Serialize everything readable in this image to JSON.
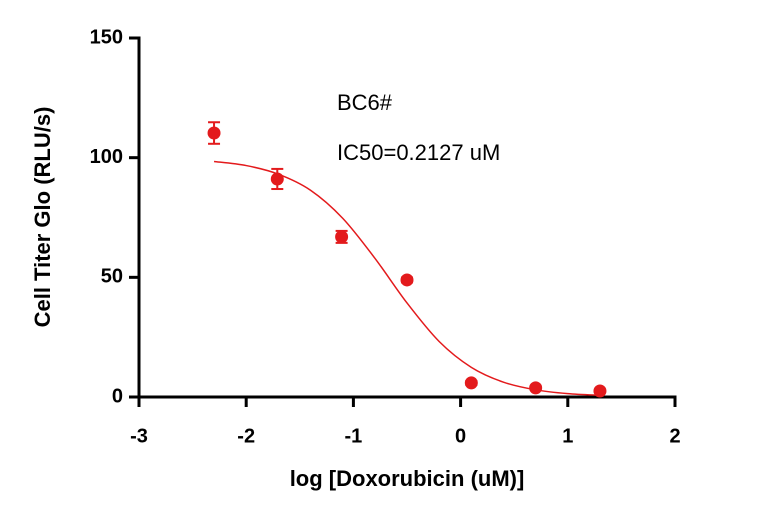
{
  "chart_data": {
    "type": "scatter",
    "xlabel": "log [Doxorubicin (uM)]",
    "ylabel": "Cell Titer Glo (RLU/s)",
    "annotations": [
      "BC6#",
      "IC50=0.2127 uM"
    ],
    "xlim": [
      -3,
      2
    ],
    "xticks": [
      -3,
      -2,
      -1,
      0,
      1,
      2
    ],
    "ylim": [
      0,
      150
    ],
    "yticks": [
      0,
      50,
      100,
      150
    ],
    "color": "#e31a1c",
    "points": {
      "x": [
        -2.3,
        -1.71,
        -1.11,
        -0.5,
        0.1,
        0.7,
        1.3
      ],
      "values": [
        110.3,
        91.1,
        66.9,
        48.9,
        5.9,
        3.8,
        2.5
      ],
      "errors": [
        4.5,
        4.2,
        2.5,
        1.0,
        0.8,
        0.6,
        0.5
      ]
    },
    "fit": {
      "x": [
        -2.3,
        -2.0,
        -1.7,
        -1.4,
        -1.1,
        -0.8,
        -0.5,
        -0.2,
        0.1,
        0.4,
        0.7,
        1.0,
        1.3
      ],
      "values": [
        98.4,
        96.7,
        93.1,
        86.4,
        74.7,
        58.0,
        39.3,
        23.2,
        12.4,
        6.2,
        3.0,
        1.4,
        0.7
      ]
    }
  }
}
